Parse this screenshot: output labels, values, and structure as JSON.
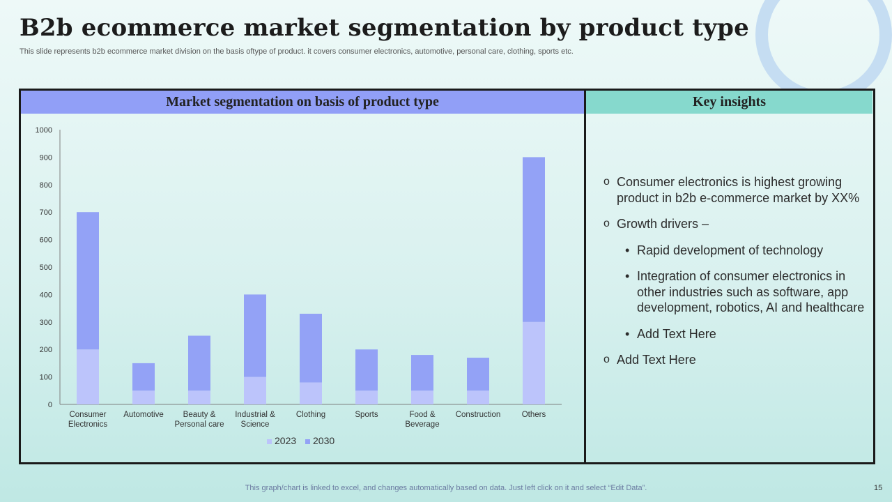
{
  "slide": {
    "title": "B2b ecommerce market segmentation by product type",
    "subtitle": "This slide represents b2b ecommerce market division on the basis oftype of product. it covers consumer electronics, automotive, personal care, clothing, sports etc.",
    "footer_note": "This graph/chart is linked to excel,  and changes automatically based on data. Just left click on it and select “Edit Data”.",
    "page_number": "15"
  },
  "panels": {
    "chart_header": "Market segmentation on basis of product type",
    "insights_header": "Key insights"
  },
  "insights": {
    "point1": "Consumer electronics is highest growing product in b2b e-commerce market by XX%",
    "point2": "Growth drivers –",
    "sub1": "Rapid development of technology",
    "sub2": "Integration of consumer electronics in other industries such as software, app development, robotics, AI and healthcare",
    "sub3": "Add Text Here",
    "point3": "Add Text Here",
    "bullet_main": "o",
    "bullet_sub": "•"
  },
  "colors": {
    "series_2023": "#bcc4fb",
    "series_2030": "#93a2f6",
    "chart_header_bg": "#919ff7",
    "insights_header_bg": "#86d9cd"
  },
  "chart_data": {
    "type": "bar",
    "stacked": true,
    "title": "Market segmentation on basis of product type",
    "xlabel": "",
    "ylabel": "",
    "ylim": [
      0,
      1000
    ],
    "yticks": [
      0,
      100,
      200,
      300,
      400,
      500,
      600,
      700,
      800,
      900,
      1000
    ],
    "categories": [
      [
        "Consumer",
        "Electronics"
      ],
      [
        "Automotive"
      ],
      [
        "Beauty &",
        "Personal care"
      ],
      [
        "Industrial &",
        "Science"
      ],
      [
        "Clothing"
      ],
      [
        "Sports"
      ],
      [
        "Food &",
        "Beverage"
      ],
      [
        "Construction"
      ],
      [
        "Others"
      ]
    ],
    "series": [
      {
        "name": "2023",
        "values": [
          200,
          50,
          50,
          100,
          80,
          50,
          50,
          50,
          300
        ]
      },
      {
        "name": "2030",
        "values": [
          500,
          100,
          200,
          300,
          250,
          150,
          130,
          120,
          600
        ]
      }
    ],
    "legend_position": "bottom"
  }
}
